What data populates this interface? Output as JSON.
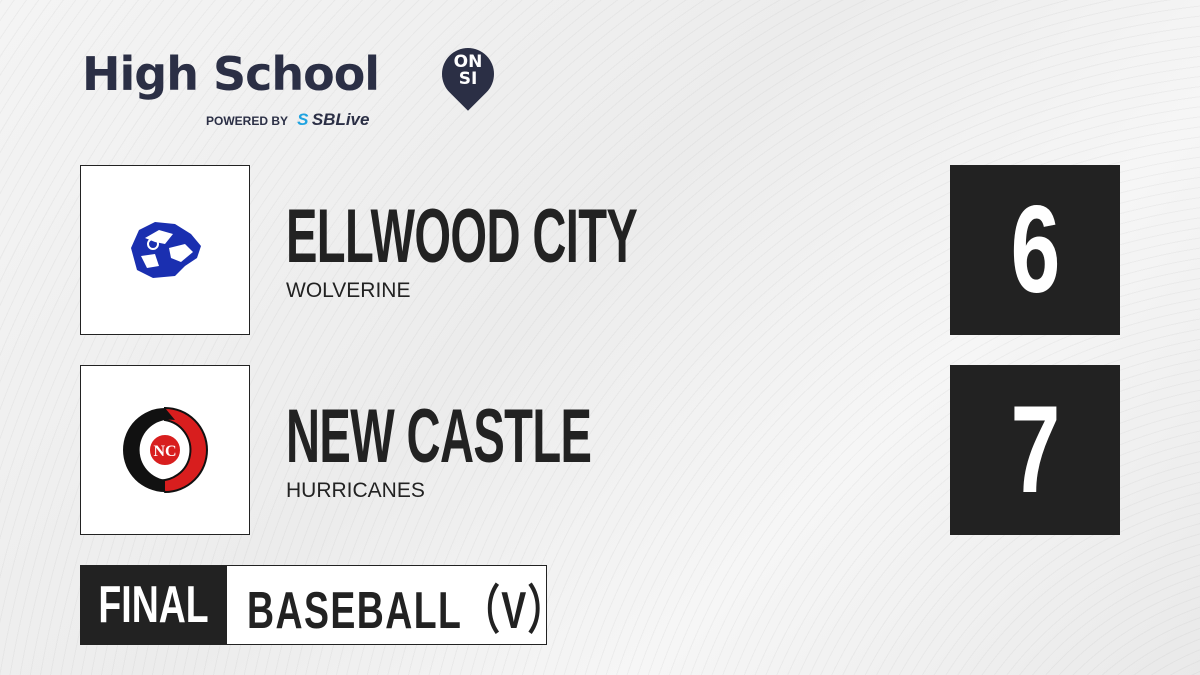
{
  "brand": {
    "title": "High School",
    "badge_line1": "ON",
    "badge_line2": "SI",
    "powered_by": "POWERED BY",
    "partner_prefix": "S",
    "partner": "SBLive"
  },
  "teams": [
    {
      "name": "ELLWOOD CITY",
      "mascot": "WOLVERINE",
      "score": "6",
      "logo_icon": "wolverine-logo",
      "logo_color": "#1a2fb0"
    },
    {
      "name": "NEW CASTLE",
      "mascot": "HURRICANES",
      "score": "7",
      "logo_icon": "hurricane-logo",
      "logo_color": "#d81e1e"
    }
  ],
  "status": "FINAL",
  "sport": "BASEBALL（V）",
  "colors": {
    "dark": "#222222",
    "brand_navy": "#2b2f45",
    "sblive_blue": "#1fa3e0"
  }
}
